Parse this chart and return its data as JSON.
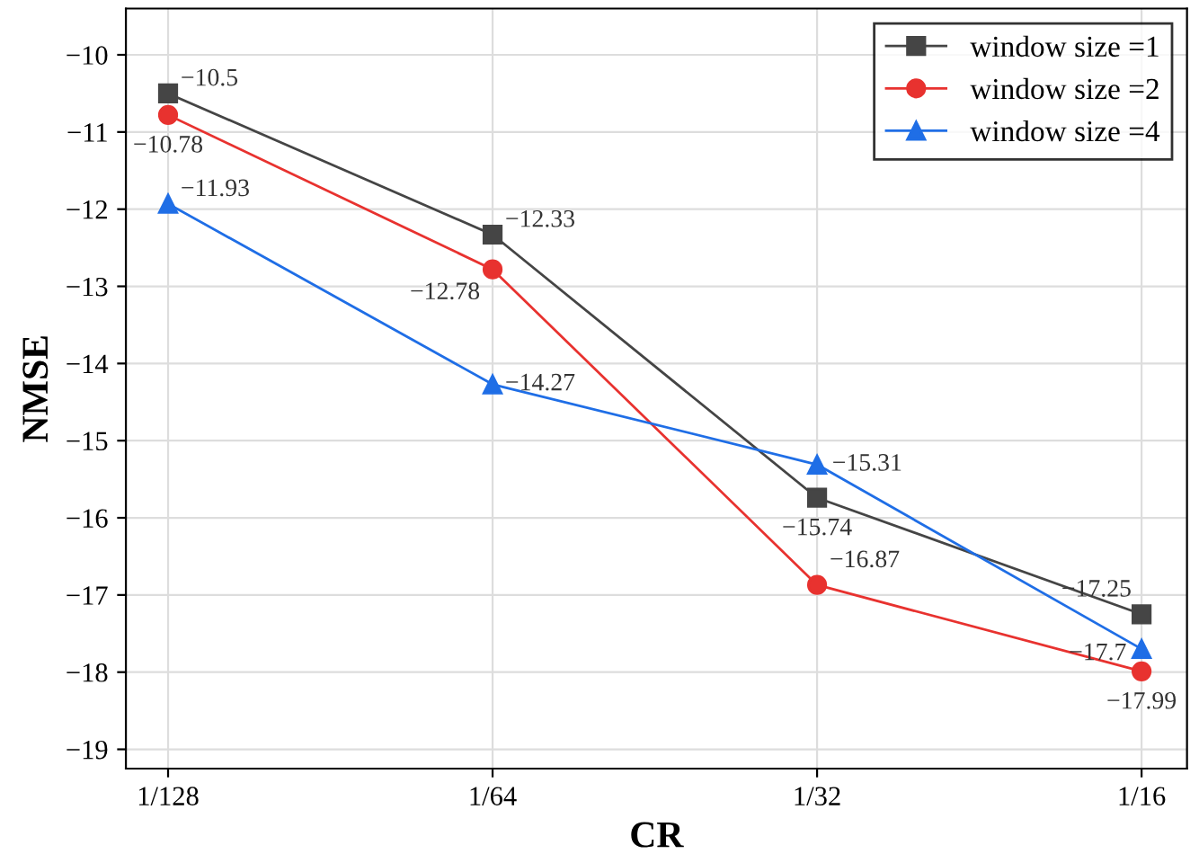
{
  "chart_data": {
    "type": "line",
    "xlabel": "CR",
    "ylabel": "NMSE",
    "categories": [
      "1/128",
      "1/64",
      "1/32",
      "1/16"
    ],
    "series": [
      {
        "name": "window size =1",
        "color": "#454545",
        "marker": "square",
        "values": [
          -10.5,
          -12.33,
          -15.74,
          -17.25
        ]
      },
      {
        "name": "window size =2",
        "color": "#e8322f",
        "marker": "circle",
        "values": [
          -10.78,
          -12.78,
          -16.87,
          -17.99
        ]
      },
      {
        "name": "window size =4",
        "color": "#1f6ee6",
        "marker": "triangle",
        "values": [
          -11.93,
          -14.27,
          -15.31,
          -17.7
        ]
      }
    ],
    "ylim": [
      -19.25,
      -9.4
    ],
    "yticks": [
      {
        "value": -10,
        "label": "−10"
      },
      {
        "value": -11,
        "label": "−11"
      },
      {
        "value": -12,
        "label": "−12"
      },
      {
        "value": -13,
        "label": "−13"
      },
      {
        "value": -14,
        "label": "−14"
      },
      {
        "value": -15,
        "label": "−15"
      },
      {
        "value": -16,
        "label": "−16"
      },
      {
        "value": -17,
        "label": "−17"
      },
      {
        "value": -18,
        "label": "−18"
      },
      {
        "value": -19,
        "label": "−19"
      }
    ],
    "grid": true,
    "legend": "top right",
    "data_labels": true,
    "line_style": "solid"
  }
}
